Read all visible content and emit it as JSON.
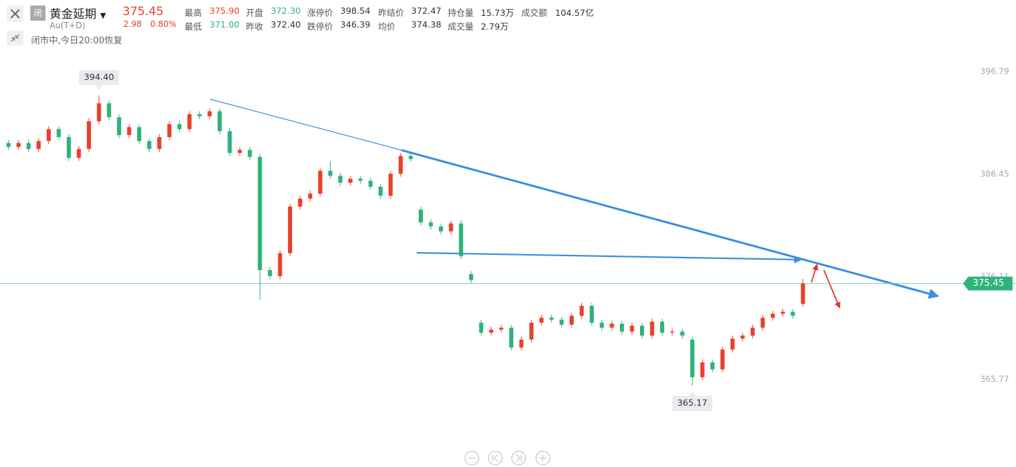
{
  "header": {
    "badge": "闭",
    "symbol": "黄金延期",
    "code": "Au(T+D)",
    "price": "375.45",
    "change": "2.98",
    "change_pct": "0.80%",
    "status": "闭市中,今日20:00恢复",
    "stats": [
      [
        {
          "label": "最高",
          "value": "375.90",
          "color": "#e8412c"
        },
        {
          "label": "开盘",
          "value": "372.30",
          "color": "#2eb37a"
        },
        {
          "label": "涨停价",
          "value": "398.54",
          "color": "#333333"
        },
        {
          "label": "昨结价",
          "value": "372.47",
          "color": "#333333"
        },
        {
          "label": "持仓量",
          "value": "15.73万",
          "color": "#333333"
        },
        {
          "label": "成交额",
          "value": "104.57亿",
          "color": "#333333"
        }
      ],
      [
        {
          "label": "最低",
          "value": "371.00",
          "color": "#2eb37a"
        },
        {
          "label": "昨收",
          "value": "372.40",
          "color": "#333333"
        },
        {
          "label": "跌停价",
          "value": "346.39",
          "color": "#333333"
        },
        {
          "label": "均价",
          "value": "374.38",
          "color": "#333333"
        },
        {
          "label": "成交量",
          "value": "2.79万",
          "color": "#333333"
        }
      ]
    ]
  },
  "chart_data": {
    "type": "candlestick",
    "up_color": "#e8412c",
    "down_color": "#2eb37a",
    "grid": false,
    "ylim": [
      359.6,
      399.15
    ],
    "yticks": [
      365.77,
      376.11,
      386.45,
      396.79
    ],
    "max_label": "394.40",
    "min_label": "365.17",
    "last_label": "375.45",
    "open": [
      389.6,
      389.2,
      389.6,
      389.0,
      389.8,
      391.0,
      390.2,
      388.1,
      389.0,
      391.8,
      393.6,
      392.2,
      390.4,
      391.2,
      389.8,
      389.0,
      390.2,
      391.5,
      391.0,
      392.5,
      392.3,
      392.8,
      390.8,
      388.6,
      388.9,
      388.2,
      376.8,
      376.2,
      378.5,
      383.2,
      384.0,
      384.5,
      386.8,
      386.3,
      385.6,
      386.0,
      385.8,
      385.2,
      384.3,
      386.5,
      388.3,
      382.9,
      381.6,
      381.2,
      380.7,
      381.5,
      376.4,
      371.5,
      370.5,
      370.8,
      371.0,
      369.0,
      369.8,
      371.5,
      372.0,
      371.8,
      371.3,
      372.2,
      373.2,
      371.5,
      371.0,
      371.4,
      370.6,
      371.2,
      370.2,
      371.6,
      370.5,
      370.6,
      369.8,
      366.0,
      367.5,
      366.8,
      368.8,
      369.9,
      370.2,
      371.0,
      372.0,
      372.4,
      372.6,
      373.4
    ],
    "high": [
      389.9,
      389.9,
      389.9,
      390.1,
      391.3,
      391.3,
      390.5,
      389.3,
      392.1,
      394.4,
      393.9,
      392.5,
      391.5,
      391.5,
      390.1,
      390.5,
      391.8,
      391.8,
      392.8,
      392.8,
      393.1,
      393.1,
      391.1,
      389.2,
      389.2,
      388.5,
      377.1,
      378.8,
      383.5,
      384.3,
      384.8,
      387.1,
      387.8,
      386.6,
      386.3,
      386.3,
      386.1,
      385.5,
      386.8,
      388.6,
      388.6,
      383.2,
      381.9,
      381.5,
      381.8,
      381.8,
      376.7,
      371.8,
      371.1,
      371.3,
      371.3,
      370.1,
      371.8,
      372.3,
      372.3,
      372.1,
      372.5,
      373.5,
      373.5,
      371.8,
      371.7,
      371.7,
      371.5,
      371.5,
      371.9,
      371.9,
      370.9,
      370.9,
      370.1,
      367.8,
      367.8,
      369.1,
      370.2,
      370.5,
      371.3,
      372.3,
      372.7,
      372.9,
      372.9,
      375.9
    ],
    "low": [
      388.9,
      388.9,
      388.7,
      388.7,
      389.5,
      389.9,
      387.8,
      387.8,
      388.7,
      391.5,
      391.9,
      390.1,
      390.1,
      389.5,
      388.7,
      388.7,
      389.9,
      390.7,
      390.7,
      392.0,
      392.0,
      390.5,
      388.3,
      388.3,
      387.9,
      373.8,
      375.9,
      375.9,
      378.2,
      382.9,
      383.7,
      384.2,
      386.0,
      385.3,
      385.3,
      385.5,
      384.9,
      384.0,
      384.0,
      386.2,
      387.7,
      381.3,
      380.9,
      380.4,
      380.4,
      377.9,
      375.5,
      370.2,
      370.2,
      370.5,
      368.7,
      368.7,
      369.5,
      371.2,
      371.5,
      371.0,
      371.0,
      371.9,
      371.2,
      370.7,
      370.7,
      370.3,
      370.3,
      369.9,
      369.9,
      370.2,
      370.2,
      369.9,
      365.17,
      365.7,
      366.5,
      366.5,
      368.5,
      369.6,
      369.9,
      370.7,
      371.7,
      372.1,
      371.9,
      373.1
    ],
    "close": [
      389.2,
      389.6,
      389.0,
      389.8,
      391.0,
      390.2,
      388.1,
      389.0,
      391.8,
      393.6,
      392.2,
      390.4,
      391.2,
      389.8,
      389.0,
      390.2,
      391.5,
      391.0,
      392.5,
      392.3,
      392.8,
      390.8,
      388.6,
      388.9,
      388.2,
      376.8,
      376.2,
      378.5,
      383.2,
      384.0,
      384.5,
      386.8,
      386.3,
      385.6,
      386.0,
      385.8,
      385.2,
      384.3,
      386.5,
      388.3,
      388.0,
      381.6,
      381.2,
      380.7,
      381.5,
      378.2,
      375.8,
      370.5,
      370.8,
      371.0,
      369.0,
      369.8,
      371.5,
      372.0,
      371.8,
      371.3,
      372.2,
      373.2,
      371.5,
      371.0,
      371.4,
      370.6,
      371.2,
      370.2,
      371.6,
      370.5,
      370.6,
      370.2,
      366.0,
      367.5,
      366.8,
      368.8,
      369.9,
      370.2,
      371.0,
      372.0,
      372.4,
      372.6,
      372.2,
      375.45
    ]
  }
}
